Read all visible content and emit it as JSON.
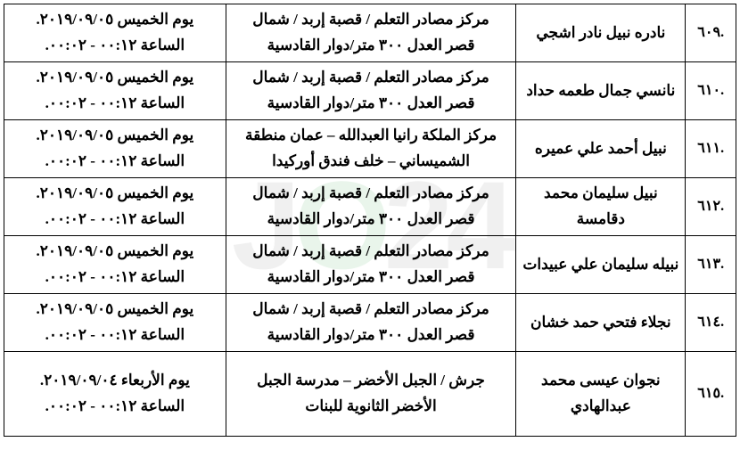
{
  "watermark": {
    "pre": "J",
    "mid": "O",
    "post": "24"
  },
  "rows": [
    {
      "idx": ".٦٠٩",
      "name": "نادره نبيل نادر اشجي",
      "loc1": "مركز مصادر التعلم / قصبة  إربد /  شمال",
      "loc2": "قصر العدل ٣٠٠ متر/دوار القادسية",
      "dt1": "يوم الخميس ٢٠١٩/٠٩/٠٥.",
      "dt2": "الساعة ٠٠:١٢ - ٠٠:٠٢.",
      "tall": false
    },
    {
      "idx": ".٦١٠",
      "name": "نانسي جمال طعمه حداد",
      "loc1": "مركز مصادر التعلم / قصبة  إربد /  شمال",
      "loc2": "قصر العدل ٣٠٠ متر/دوار القادسية",
      "dt1": "يوم الخميس ٢٠١٩/٠٩/٠٥.",
      "dt2": "الساعة ٠٠:١٢ - ٠٠:٠٢.",
      "tall": false
    },
    {
      "idx": ".٦١١",
      "name": "نبيل أحمد علي عميره",
      "loc1": "مركز الملكة رانيا العبدالله – عمان منطقة",
      "loc2": "الشميساني – خلف فندق أوركيدا",
      "dt1": "يوم الخميس ٢٠١٩/٠٩/٠٥.",
      "dt2": "الساعة ٠٠:١٢ - ٠٠:٠٢.",
      "tall": false
    },
    {
      "idx": ".٦١٢",
      "name": "نبيل سليمان محمد دقامسة",
      "loc1": "مركز مصادر التعلم / قصبة  إربد /  شمال",
      "loc2": "قصر العدل ٣٠٠ متر/دوار القادسية",
      "dt1": "يوم الخميس ٢٠١٩/٠٩/٠٥.",
      "dt2": "الساعة ٠٠:١٢ - ٠٠:٠٢.",
      "tall": false
    },
    {
      "idx": ".٦١٣",
      "name": "نبيله سليمان علي عبيدات",
      "loc1": "مركز مصادر التعلم / قصبة  إربد /  شمال",
      "loc2": "قصر العدل ٣٠٠ متر/دوار القادسية",
      "dt1": "يوم الخميس ٢٠١٩/٠٩/٠٥.",
      "dt2": "الساعة ٠٠:١٢ - ٠٠:٠٢.",
      "tall": false
    },
    {
      "idx": ".٦١٤",
      "name": "نجلاء فتحي حمد خشان",
      "loc1": "مركز مصادر التعلم / قصبة  إربد /  شمال",
      "loc2": "قصر العدل ٣٠٠ متر/دوار القادسية",
      "dt1": "يوم الخميس ٢٠١٩/٠٩/٠٥.",
      "dt2": "الساعة ٠٠:١٢ - ٠٠:٠٢.",
      "tall": false
    },
    {
      "idx": ".٦١٥",
      "name": "نجوان عيسى محمد عبدالهادي",
      "loc1": "جرش / الجبل الأخضر  –  مدرسة الجبل",
      "loc2": "الأخضر الثانوية للبنات",
      "dt1": "يوم الأربعاء ٢٠١٩/٠٩/٠٤.",
      "dt2": "الساعة ٠٠:١٢ - ٠٠:٠٢.",
      "tall": true
    }
  ]
}
